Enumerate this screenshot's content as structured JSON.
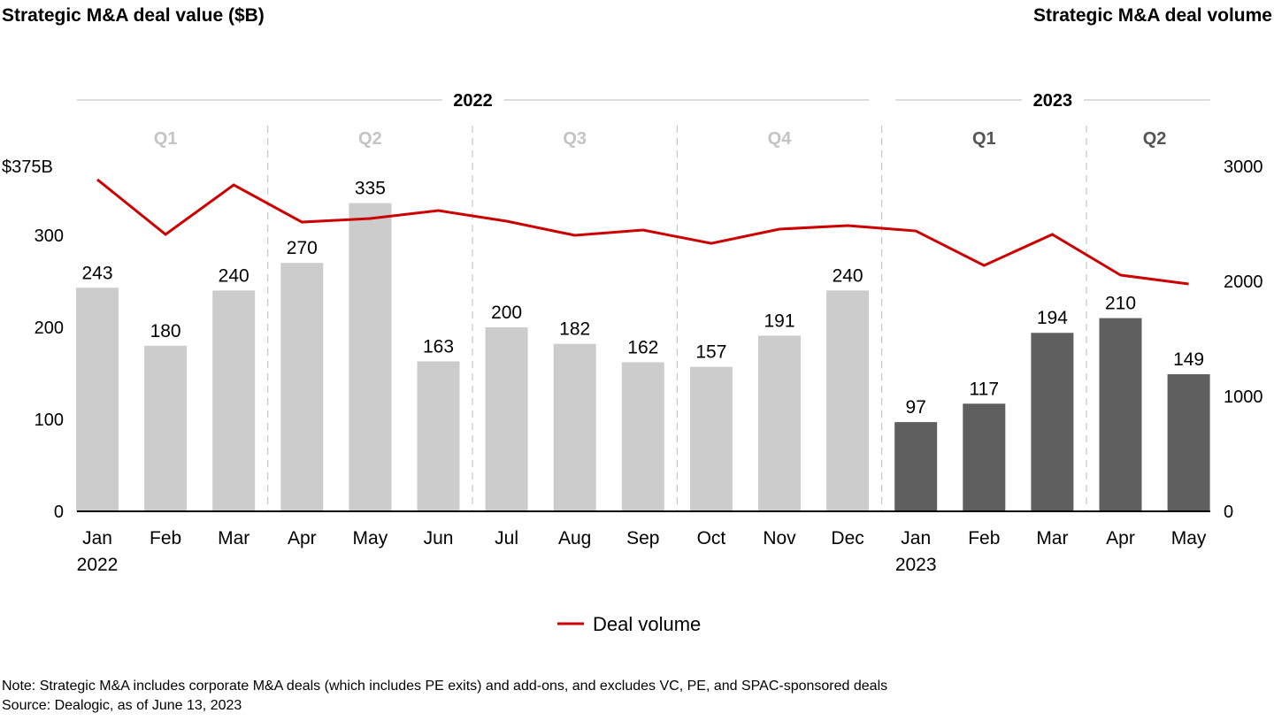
{
  "chart_data": {
    "type": "bar+line",
    "title_left": "Strategic M&A deal value ($B)",
    "title_right": "Strategic M&A deal volume",
    "categories": [
      "Jan",
      "Feb",
      "Mar",
      "Apr",
      "May",
      "Jun",
      "Jul",
      "Aug",
      "Sep",
      "Oct",
      "Nov",
      "Dec",
      "Jan",
      "Feb",
      "Mar",
      "Apr",
      "May"
    ],
    "category_sublabels": [
      "2022",
      "",
      "",
      "",
      "",
      "",
      "",
      "",
      "",
      "",
      "",
      "",
      "2023",
      "",
      "",
      "",
      ""
    ],
    "years": [
      {
        "label": "2022",
        "start": 0,
        "end": 11
      },
      {
        "label": "2023",
        "start": 12,
        "end": 16
      }
    ],
    "quarters": [
      {
        "label": "Q1",
        "start": 0,
        "end": 2,
        "highlight": false
      },
      {
        "label": "Q2",
        "start": 3,
        "end": 5,
        "highlight": false
      },
      {
        "label": "Q3",
        "start": 6,
        "end": 8,
        "highlight": false
      },
      {
        "label": "Q4",
        "start": 9,
        "end": 11,
        "highlight": false
      },
      {
        "label": "Q1",
        "start": 12,
        "end": 14,
        "highlight": true
      },
      {
        "label": "Q2",
        "start": 15,
        "end": 16,
        "highlight": true
      }
    ],
    "bars": {
      "values": [
        243,
        180,
        240,
        270,
        335,
        163,
        200,
        182,
        162,
        157,
        191,
        240,
        97,
        117,
        194,
        210,
        149
      ],
      "axis": "left"
    },
    "line": {
      "name": "Deal volume",
      "values": [
        2885,
        2408,
        2838,
        2515,
        2546,
        2615,
        2523,
        2400,
        2446,
        2330,
        2454,
        2485,
        2438,
        2138,
        2408,
        2054,
        1977
      ],
      "axis": "right"
    },
    "left_axis": {
      "ylim": [
        0,
        375
      ],
      "ticks": [
        0,
        100,
        200,
        300,
        375
      ],
      "tick_labels": [
        "0",
        "100",
        "200",
        "300",
        "$375B"
      ]
    },
    "right_axis": {
      "ylim": [
        0,
        3000
      ],
      "ticks": [
        0,
        1000,
        2000,
        3000
      ],
      "tick_labels": [
        "0",
        "1000",
        "2000",
        "3000"
      ]
    },
    "legend": {
      "position": "bottom-center",
      "entries": [
        "Deal volume"
      ]
    },
    "colors": {
      "bar_2022": "#cccccc",
      "bar_2023": "#5f5f5f",
      "line": "#cc0000",
      "quarter_2022": "#c4c4c4",
      "quarter_2023": "#555555"
    },
    "grid": false
  },
  "notes": {
    "note": "Note: Strategic M&A includes corporate M&A deals (which includes PE exits) and add-ons, and excludes VC, PE, and SPAC-sponsored deals",
    "source": "Source: Dealogic, as of June 13, 2023"
  }
}
